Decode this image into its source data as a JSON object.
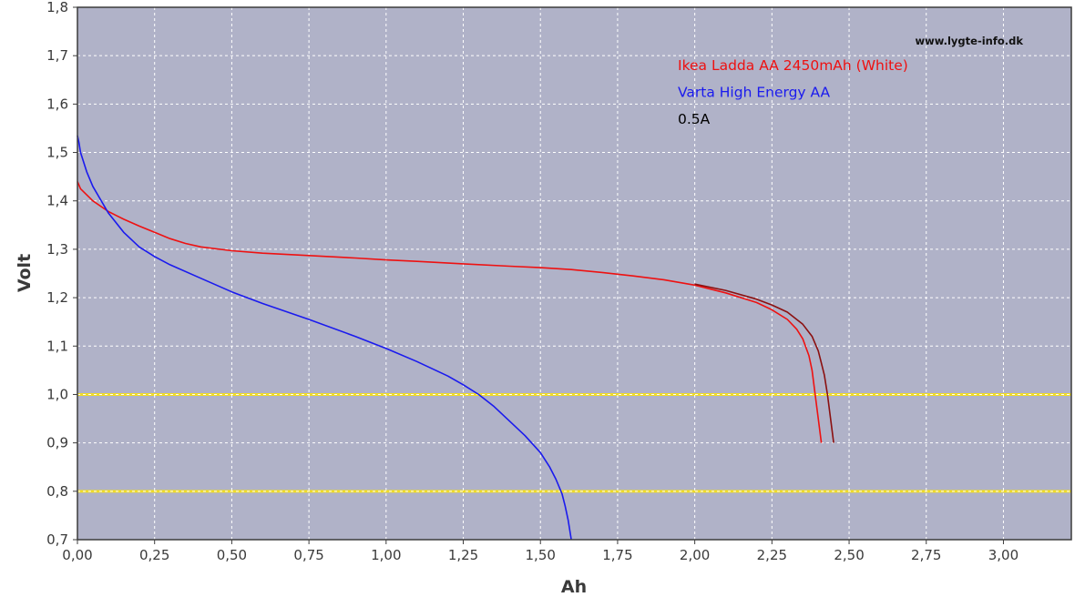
{
  "chart_data": {
    "type": "line",
    "xlabel": "Ah",
    "ylabel": "Volt",
    "xlim": [
      0,
      3.22
    ],
    "ylim": [
      0.7,
      1.8
    ],
    "x_ticks": [
      "0,00",
      "0,25",
      "0,50",
      "0,75",
      "1,00",
      "1,25",
      "1,50",
      "1,75",
      "2,00",
      "2,25",
      "2,50",
      "2,75",
      "3,00"
    ],
    "y_ticks": [
      "0,7",
      "0,8",
      "0,9",
      "1,0",
      "1,1",
      "1,2",
      "1,3",
      "1,4",
      "1,5",
      "1,6",
      "1,7",
      "1,8"
    ],
    "grid": true,
    "watermark": "www.lygte-info.dk",
    "legend_position": "top-right",
    "legend": [
      {
        "text": "Ikea Ladda AA 2450mAh (White)",
        "color": "#ee1111"
      },
      {
        "text": "Varta High Energy AA",
        "color": "#1a1aee"
      },
      {
        "text": "0.5A",
        "color": "#000000"
      }
    ],
    "reference_lines": [
      {
        "y": 1.0,
        "color": "#f0dc28"
      },
      {
        "y": 0.8,
        "color": "#f0dc28"
      }
    ],
    "series": [
      {
        "name": "Ikea Ladda AA 2450mAh (White)",
        "color": "#ee1111",
        "x": [
          0.0,
          0.01,
          0.05,
          0.1,
          0.15,
          0.2,
          0.25,
          0.3,
          0.35,
          0.4,
          0.5,
          0.6,
          0.75,
          0.9,
          1.0,
          1.1,
          1.25,
          1.4,
          1.5,
          1.6,
          1.7,
          1.8,
          1.9,
          2.0,
          2.1,
          2.2,
          2.25,
          2.3,
          2.33,
          2.35,
          2.37,
          2.38,
          2.39,
          2.4,
          2.41
        ],
        "y": [
          1.44,
          1.425,
          1.4,
          1.378,
          1.362,
          1.348,
          1.335,
          1.322,
          1.312,
          1.305,
          1.297,
          1.292,
          1.287,
          1.282,
          1.278,
          1.275,
          1.27,
          1.265,
          1.262,
          1.258,
          1.252,
          1.245,
          1.237,
          1.226,
          1.21,
          1.19,
          1.175,
          1.155,
          1.135,
          1.115,
          1.08,
          1.05,
          1.0,
          0.95,
          0.9
        ]
      },
      {
        "name": "",
        "color": "#8b1010",
        "x": [
          2.0,
          2.1,
          2.2,
          2.25,
          2.3,
          2.35,
          2.38,
          2.4,
          2.41,
          2.42,
          2.43,
          2.44,
          2.45
        ],
        "y": [
          1.228,
          1.215,
          1.197,
          1.185,
          1.17,
          1.145,
          1.12,
          1.09,
          1.065,
          1.04,
          1.0,
          0.95,
          0.9
        ]
      },
      {
        "name": "Varta High Energy AA",
        "color": "#1a1aee",
        "x": [
          0.0,
          0.005,
          0.01,
          0.03,
          0.05,
          0.1,
          0.15,
          0.2,
          0.25,
          0.3,
          0.4,
          0.5,
          0.6,
          0.75,
          0.9,
          1.0,
          1.1,
          1.2,
          1.25,
          1.3,
          1.35,
          1.4,
          1.45,
          1.5,
          1.53,
          1.55,
          1.57,
          1.58,
          1.59,
          1.6
        ],
        "y": [
          1.535,
          1.52,
          1.5,
          1.46,
          1.43,
          1.375,
          1.335,
          1.305,
          1.285,
          1.268,
          1.24,
          1.212,
          1.188,
          1.155,
          1.12,
          1.095,
          1.068,
          1.038,
          1.02,
          1.0,
          0.975,
          0.945,
          0.915,
          0.88,
          0.85,
          0.825,
          0.795,
          0.77,
          0.74,
          0.7
        ]
      }
    ]
  }
}
